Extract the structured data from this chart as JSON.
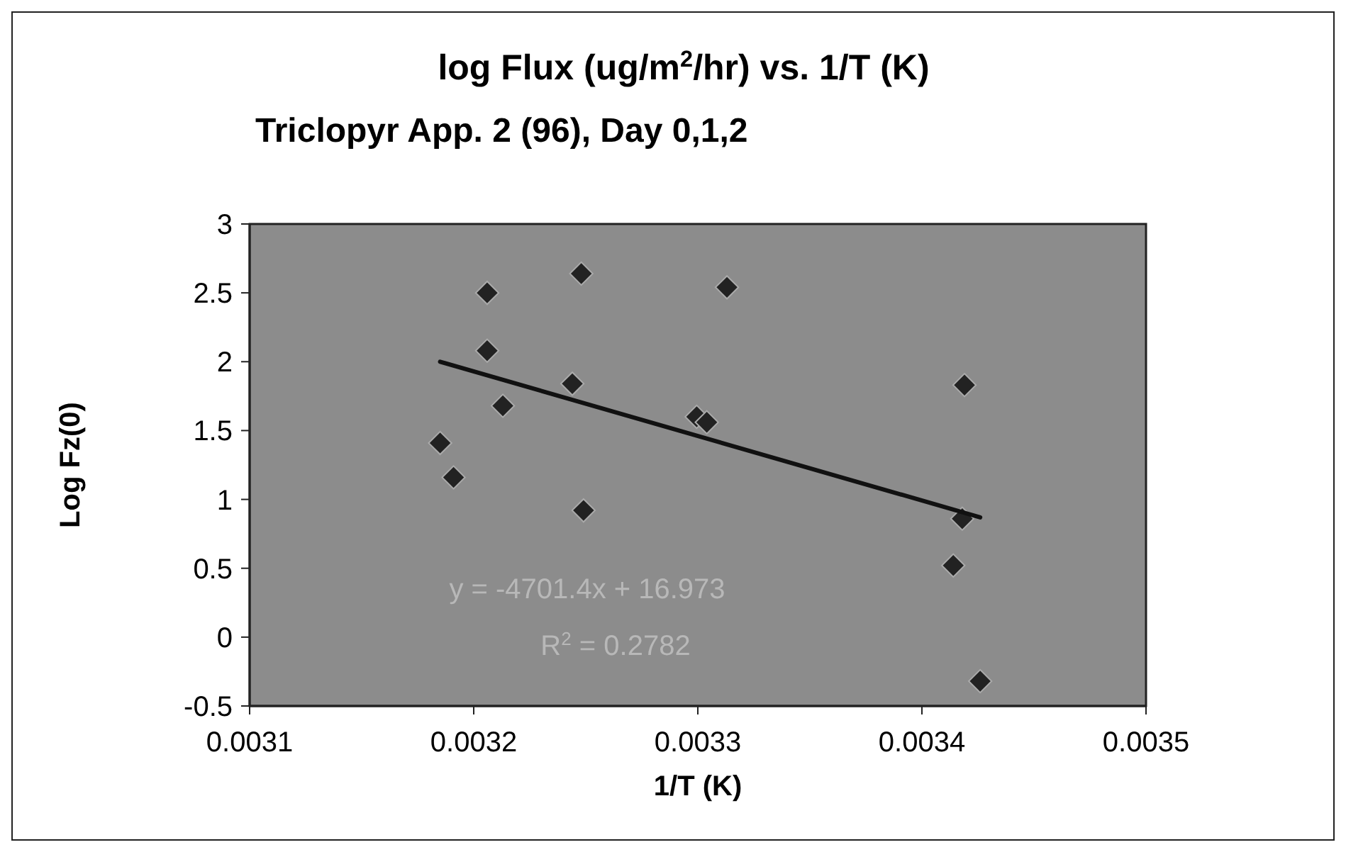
{
  "chart_data": {
    "type": "scatter",
    "title": "log Flux (ug/m$^{2}$/hr) vs. 1/T (K)",
    "subtitle": "Triclopyr App. 2 (96), Day 0,1,2",
    "xlabel": "1/T (K)",
    "ylabel": "Log Fz(0)",
    "xlim": [
      0.0031,
      0.0035
    ],
    "xticks": [
      0.0031,
      0.0032,
      0.0033,
      0.0034,
      0.0035
    ],
    "ylim": [
      -0.5,
      3
    ],
    "yticks": [
      -0.5,
      0,
      0.5,
      1,
      1.5,
      2,
      2.5,
      3
    ],
    "grid": false,
    "series": [
      {
        "marker": "diamond",
        "color": "#222222",
        "x": [
          0.003185,
          0.003191,
          0.003206,
          0.003206,
          0.003213,
          0.003248,
          0.003244,
          0.003249,
          0.003313,
          0.0032995,
          0.003304,
          0.003419,
          0.003418,
          0.003414,
          0.003426
        ],
        "values": [
          1.41,
          1.16,
          2.5,
          2.08,
          1.68,
          2.64,
          1.84,
          0.92,
          2.54,
          1.6,
          1.56,
          1.83,
          0.86,
          0.52,
          -0.32
        ]
      },
      {
        "type": "line",
        "color": "#111111",
        "x": [
          0.003185,
          0.003426
        ],
        "values": [
          2.0,
          0.87
        ]
      }
    ],
    "annotations": [
      "y = -4701.4x + 16.973",
      "R$^{2}$ = 0.2782"
    ]
  }
}
